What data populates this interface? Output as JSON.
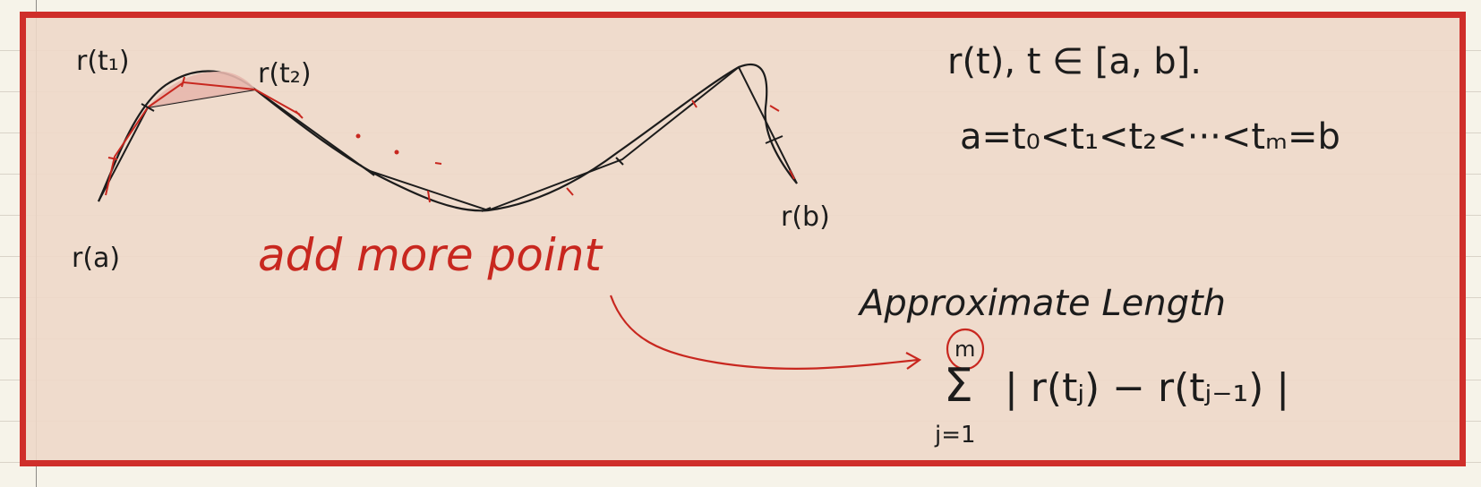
{
  "curve_labels": {
    "r_t1": "r(t₁)",
    "r_t2": "r(t₂)",
    "r_a": "r(a)",
    "r_b": "r(b)"
  },
  "annotation": "add more point",
  "parametrization": "r(t),   t ∈ [a, b].",
  "partition": "a=t₀<t₁<t₂<···<tₘ=b",
  "approx_title": "Approximate Length",
  "sum": {
    "upper": "m",
    "symbol": "Σ",
    "lower": "j=1",
    "body": "| r(tⱼ) − r(tⱼ₋₁) |"
  },
  "colors": {
    "ink": "#1c1c1c",
    "red_ink": "#c8271f",
    "frame": "#cf2e2a",
    "fill": "#eed8c9"
  }
}
